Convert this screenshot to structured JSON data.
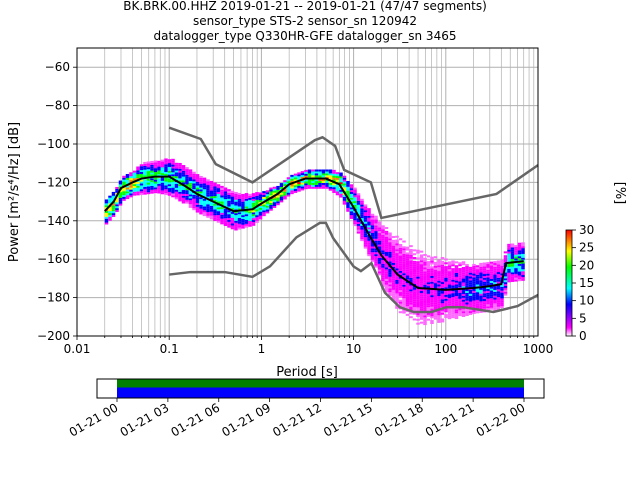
{
  "chart_data": {
    "type": "heatmap",
    "title_lines": [
      "BK.BRK.00.HHZ   2019-01-21 -- 2019-01-21  (47/47 segments)",
      "sensor_type STS-2 sensor_sn 120942",
      "datalogger_type Q330HR-GFE datalogger_sn 3465"
    ],
    "xlabel": "Period [s]",
    "ylabel": "Power [m²/s⁴/Hz] [dB]",
    "xscale": "log",
    "xlim": [
      0.01,
      1000
    ],
    "ylim": [
      -200,
      -50
    ],
    "xticks": [
      {
        "v": 0.01,
        "label": "0.01"
      },
      {
        "v": 0.1,
        "label": "0.1"
      },
      {
        "v": 1,
        "label": "1"
      },
      {
        "v": 10,
        "label": "10"
      },
      {
        "v": 100,
        "label": "100"
      },
      {
        "v": 1000,
        "label": "1000"
      }
    ],
    "yticks": [
      {
        "v": -60,
        "label": "−60"
      },
      {
        "v": -80,
        "label": "−80"
      },
      {
        "v": -100,
        "label": "−100"
      },
      {
        "v": -120,
        "label": "−120"
      },
      {
        "v": -140,
        "label": "−140"
      },
      {
        "v": -160,
        "label": "−160"
      },
      {
        "v": -180,
        "label": "−180"
      },
      {
        "v": -200,
        "label": "−200"
      }
    ],
    "grid": true,
    "median_curve": {
      "period": [
        0.02,
        0.025,
        0.03,
        0.04,
        0.05,
        0.07,
        0.1,
        0.15,
        0.2,
        0.3,
        0.5,
        0.8,
        1,
        1.5,
        2,
        3,
        5,
        7,
        10,
        15,
        20,
        30,
        50,
        100,
        200,
        300,
        400,
        450,
        700
      ],
      "db": [
        -135,
        -130,
        -123,
        -120,
        -118,
        -117,
        -117,
        -122,
        -126,
        -130,
        -135,
        -134,
        -131,
        -126,
        -121,
        -118,
        -118,
        -121,
        -133,
        -148,
        -158,
        -168,
        -175,
        -176,
        -175,
        -174,
        -173,
        -162,
        -161
      ]
    },
    "pdf_spread_db": [
      4,
      4,
      4,
      4,
      5,
      5,
      6,
      6,
      6,
      6,
      6,
      5,
      4,
      3,
      3,
      3,
      3,
      4,
      6,
      8,
      10,
      12,
      12,
      10,
      8,
      8,
      8,
      6,
      6
    ],
    "nhnm": {
      "name": "NHNM",
      "period": [
        0.1,
        0.22,
        0.32,
        0.8,
        3.8,
        4.6,
        6.3,
        7.9,
        15.4,
        20,
        354.8,
        1000
      ],
      "db": [
        -91.5,
        -97.4,
        -110.5,
        -120,
        -98,
        -96.5,
        -101,
        -113.5,
        -120,
        -138.5,
        -126,
        -111
      ]
    },
    "nlnm": {
      "name": "NLNM",
      "period": [
        0.1,
        0.17,
        0.4,
        0.8,
        1.24,
        2.4,
        4.3,
        5,
        6,
        10,
        12,
        15.6,
        21.9,
        31.6,
        45,
        70,
        101,
        154,
        328,
        600,
        1000
      ],
      "db": [
        -168,
        -166.7,
        -166.7,
        -169.2,
        -163.7,
        -148.6,
        -141.1,
        -141.1,
        -149,
        -163.8,
        -166.2,
        -162.1,
        -177.5,
        -185,
        -187.5,
        -187.5,
        -185,
        -185,
        -187.5,
        -184.4,
        -178.6
      ]
    },
    "colorbar": {
      "label": "[%]",
      "range": [
        0,
        30
      ],
      "ticks": [
        "0",
        "5",
        "10",
        "15",
        "20",
        "25",
        "30"
      ],
      "colors": [
        "#ffffff",
        "#ff00ff",
        "#0000ff",
        "#00ffff",
        "#00ff00",
        "#ffff00",
        "#ff0000"
      ]
    },
    "timeline": {
      "ticks": [
        "01-21 00",
        "01-21 03",
        "01-21 06",
        "01-21 09",
        "01-21 12",
        "01-21 15",
        "01-21 18",
        "01-21 21",
        "01-22 00"
      ],
      "coverage_hours": [
        0,
        24
      ],
      "bar_colors": {
        "top": "#008000",
        "bottom": "#0000ff"
      }
    },
    "colors": {
      "noise_model": "#666666",
      "median": "#000000",
      "grid": "#b0b0b0"
    }
  }
}
